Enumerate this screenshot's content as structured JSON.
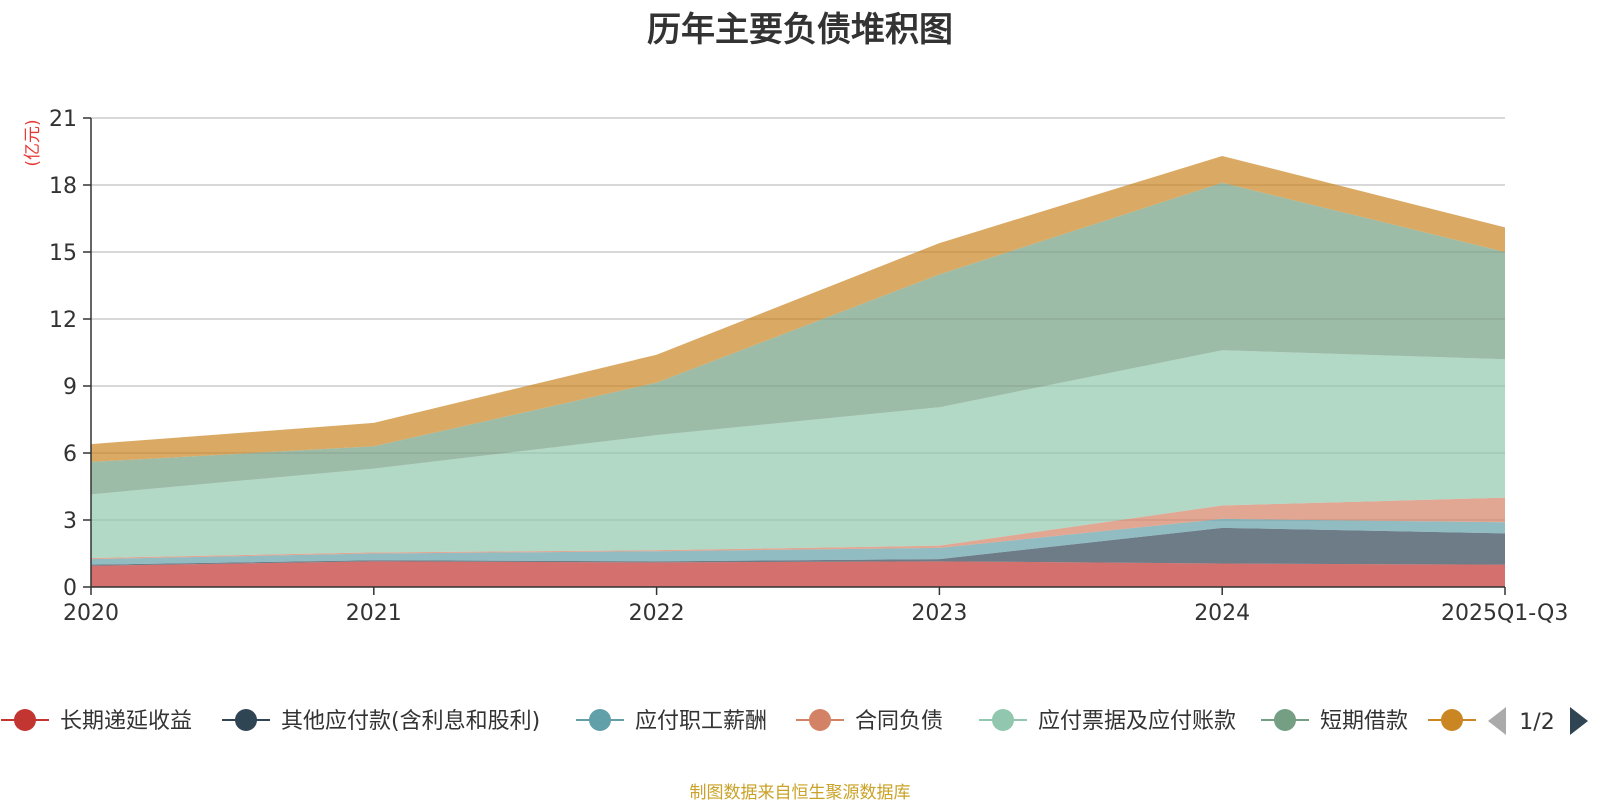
{
  "chart_data": {
    "type": "area",
    "stacked": true,
    "title": "历年主要负债堆积图",
    "ylabel": "(亿元)",
    "xlabel": "",
    "ylim": [
      0,
      21
    ],
    "yticks": [
      0,
      3,
      6,
      9,
      12,
      15,
      18,
      21
    ],
    "categories": [
      "2020",
      "2021",
      "2022",
      "2023",
      "2024",
      "2025Q1-Q3"
    ],
    "grid": true,
    "series": [
      {
        "name": "长期递延收益",
        "color": "#c23531",
        "values": [
          0.95,
          1.15,
          1.1,
          1.15,
          1.05,
          1.0
        ]
      },
      {
        "name": "其他应付款(含利息和股利)",
        "color": "#2f4554",
        "values": [
          0.05,
          0.05,
          0.05,
          0.1,
          1.6,
          1.4
        ]
      },
      {
        "name": "应付职工薪酬",
        "color": "#61a0a8",
        "values": [
          0.25,
          0.3,
          0.45,
          0.5,
          0.4,
          0.5
        ]
      },
      {
        "name": "合同负债",
        "color": "#d48265",
        "values": [
          0.05,
          0.05,
          0.05,
          0.1,
          0.6,
          1.1
        ]
      },
      {
        "name": "应付票据及应付账款",
        "color": "#91c7ae",
        "values": [
          2.85,
          3.75,
          5.15,
          6.2,
          6.95,
          6.2
        ]
      },
      {
        "name": "短期借款",
        "color": "#749f83",
        "values": [
          1.45,
          1.0,
          2.35,
          5.95,
          7.5,
          4.8
        ]
      },
      {
        "name": "",
        "color": "#ca8622",
        "values": [
          0.8,
          1.05,
          1.25,
          1.4,
          1.2,
          1.1
        ]
      }
    ],
    "legend": {
      "position": "bottom",
      "page": "1/2"
    }
  },
  "source_note": "制图数据来自恒生聚源数据库",
  "colors": {
    "source_note": "#c9a227",
    "ylabel": "#e53935",
    "pager_active": "#2f4554",
    "pager_inactive": "#aaaaaa",
    "grid": "#cccccc",
    "axis": "#333333"
  }
}
